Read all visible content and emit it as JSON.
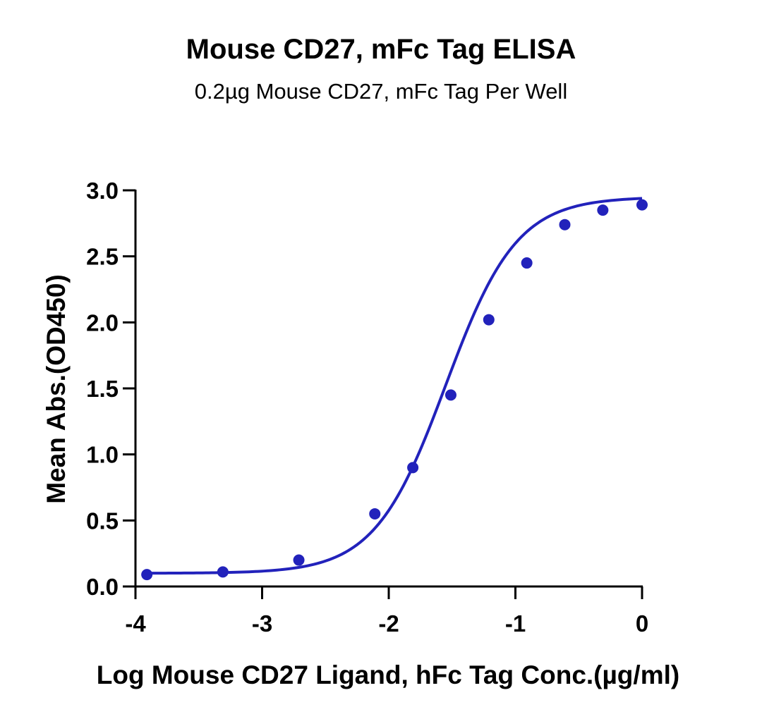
{
  "chart_data": {
    "type": "line",
    "title": "Mouse CD27, mFc Tag ELISA",
    "subtitle": "0.2µg Mouse CD27, mFc Tag Per Well",
    "xlabel": "Log Mouse CD27 Ligand, hFc Tag Conc.(µg/ml)",
    "ylabel": "Mean Abs.(OD450)",
    "xlim": [
      -4,
      0
    ],
    "ylim": [
      0,
      3.0
    ],
    "xticks": [
      "-4",
      "-3",
      "-2",
      "-1",
      "0"
    ],
    "yticks": [
      "0.0",
      "0.5",
      "1.0",
      "1.5",
      "2.0",
      "2.5",
      "3.0"
    ],
    "grid": false,
    "series": [
      {
        "color": "#2222bb",
        "points": [
          {
            "x": -3.91,
            "y": 0.09
          },
          {
            "x": -3.31,
            "y": 0.11
          },
          {
            "x": -2.71,
            "y": 0.2
          },
          {
            "x": -2.11,
            "y": 0.55
          },
          {
            "x": -1.81,
            "y": 0.9
          },
          {
            "x": -1.51,
            "y": 1.45
          },
          {
            "x": -1.21,
            "y": 2.02
          },
          {
            "x": -0.91,
            "y": 2.45
          },
          {
            "x": -0.61,
            "y": 2.74
          },
          {
            "x": -0.31,
            "y": 2.85
          },
          {
            "x": 0.0,
            "y": 2.89
          }
        ],
        "fit": {
          "model": "4PL",
          "bottom": 0.1,
          "top": 2.95,
          "logEC50": -1.55,
          "hill": 1.55
        }
      }
    ]
  }
}
